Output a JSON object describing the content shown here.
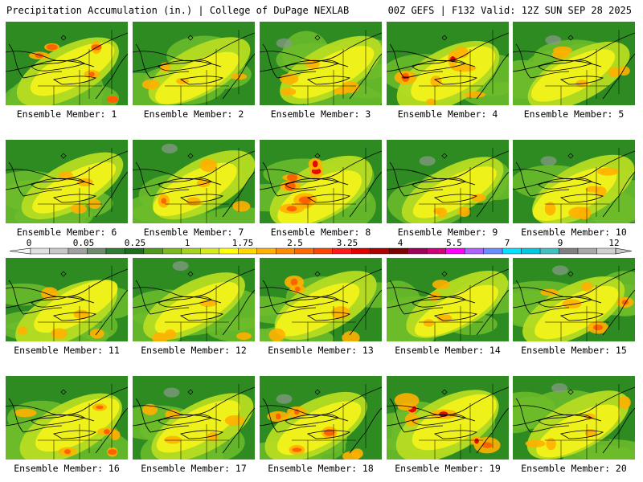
{
  "header": {
    "title_left": "Precipitation Accumulation (in.) | College of DuPage NEXLAB",
    "title_right": "00Z GEFS | F132 Valid: 12Z SUN SEP 28 2025"
  },
  "members": [
    "Ensemble Member: 1",
    "Ensemble Member: 2",
    "Ensemble Member: 3",
    "Ensemble Member: 4",
    "Ensemble Member: 5",
    "Ensemble Member: 6",
    "Ensemble Member: 7",
    "Ensemble Member: 8",
    "Ensemble Member: 9",
    "Ensemble Member: 10",
    "Ensemble Member: 11",
    "Ensemble Member: 12",
    "Ensemble Member: 13",
    "Ensemble Member: 14",
    "Ensemble Member: 15",
    "Ensemble Member: 16",
    "Ensemble Member: 17",
    "Ensemble Member: 18",
    "Ensemble Member: 19",
    "Ensemble Member: 20"
  ],
  "colorbar": {
    "labels": [
      "0",
      "0.05",
      "0.25",
      "1",
      "1.75",
      "2.5",
      "3.25",
      "4",
      "5.5",
      "7",
      "9",
      "12"
    ],
    "colors": [
      "#e0e0e0",
      "#c8c8c8",
      "#a0a0a0",
      "#6e8b6e",
      "#2e7d32",
      "#1e6e1e",
      "#4e9a1a",
      "#7cba1e",
      "#a6d31e",
      "#d6ea1e",
      "#ffff00",
      "#ffd700",
      "#ffb000",
      "#ff8c00",
      "#ff6a00",
      "#ff4500",
      "#ff1a1a",
      "#e00000",
      "#b00000",
      "#800000",
      "#a0005a",
      "#d0007d",
      "#ff00ff",
      "#b060ff",
      "#6a8cff",
      "#00e0ff",
      "#00c8e0",
      "#40c0c0",
      "#808080",
      "#a8a8a8",
      "#d0d0d0"
    ]
  }
}
